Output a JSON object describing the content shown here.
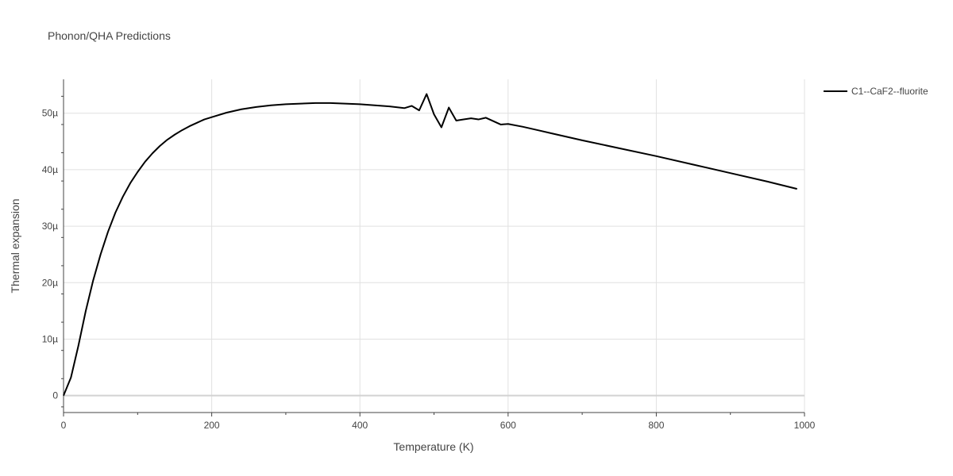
{
  "chart_data": {
    "type": "line",
    "title": "Phonon/QHA Predictions",
    "xlabel": "Temperature (K)",
    "ylabel": "Thermal expansion",
    "xlim": [
      0,
      1000
    ],
    "ylim": [
      -3,
      56
    ],
    "x_ticks": [
      0,
      200,
      400,
      600,
      800,
      1000
    ],
    "x_tick_labels": [
      "0",
      "200",
      "400",
      "600",
      "800",
      "1000"
    ],
    "y_ticks": [
      0,
      10,
      20,
      30,
      40,
      50
    ],
    "y_tick_labels": [
      "0",
      "10µ",
      "20µ",
      "30µ",
      "40µ",
      "50µ"
    ],
    "grid": true,
    "legend_position": "top-right",
    "series": [
      {
        "name": "C1--CaF2--fluorite",
        "color": "#000000",
        "x": [
          0,
          10,
          20,
          30,
          40,
          50,
          60,
          70,
          80,
          90,
          100,
          110,
          120,
          130,
          140,
          150,
          160,
          170,
          180,
          190,
          200,
          220,
          240,
          260,
          280,
          300,
          320,
          340,
          360,
          380,
          400,
          420,
          440,
          460,
          470,
          480,
          490,
          500,
          510,
          520,
          530,
          540,
          550,
          560,
          570,
          580,
          590,
          600,
          620,
          640,
          660,
          680,
          700,
          750,
          800,
          850,
          900,
          950,
          990
        ],
        "y": [
          0,
          3.2,
          8.8,
          15.0,
          20.4,
          25.0,
          29.0,
          32.4,
          35.2,
          37.6,
          39.6,
          41.4,
          42.9,
          44.2,
          45.3,
          46.2,
          47.0,
          47.7,
          48.3,
          48.9,
          49.3,
          50.1,
          50.7,
          51.1,
          51.4,
          51.6,
          51.7,
          51.8,
          51.8,
          51.7,
          51.6,
          51.4,
          51.2,
          50.9,
          51.3,
          50.5,
          53.4,
          49.8,
          47.5,
          51.0,
          48.7,
          48.9,
          49.1,
          48.9,
          49.2,
          48.6,
          48.0,
          48.1,
          47.6,
          47.0,
          46.4,
          45.8,
          45.2,
          43.8,
          42.4,
          40.9,
          39.4,
          37.9,
          36.6
        ]
      }
    ]
  }
}
